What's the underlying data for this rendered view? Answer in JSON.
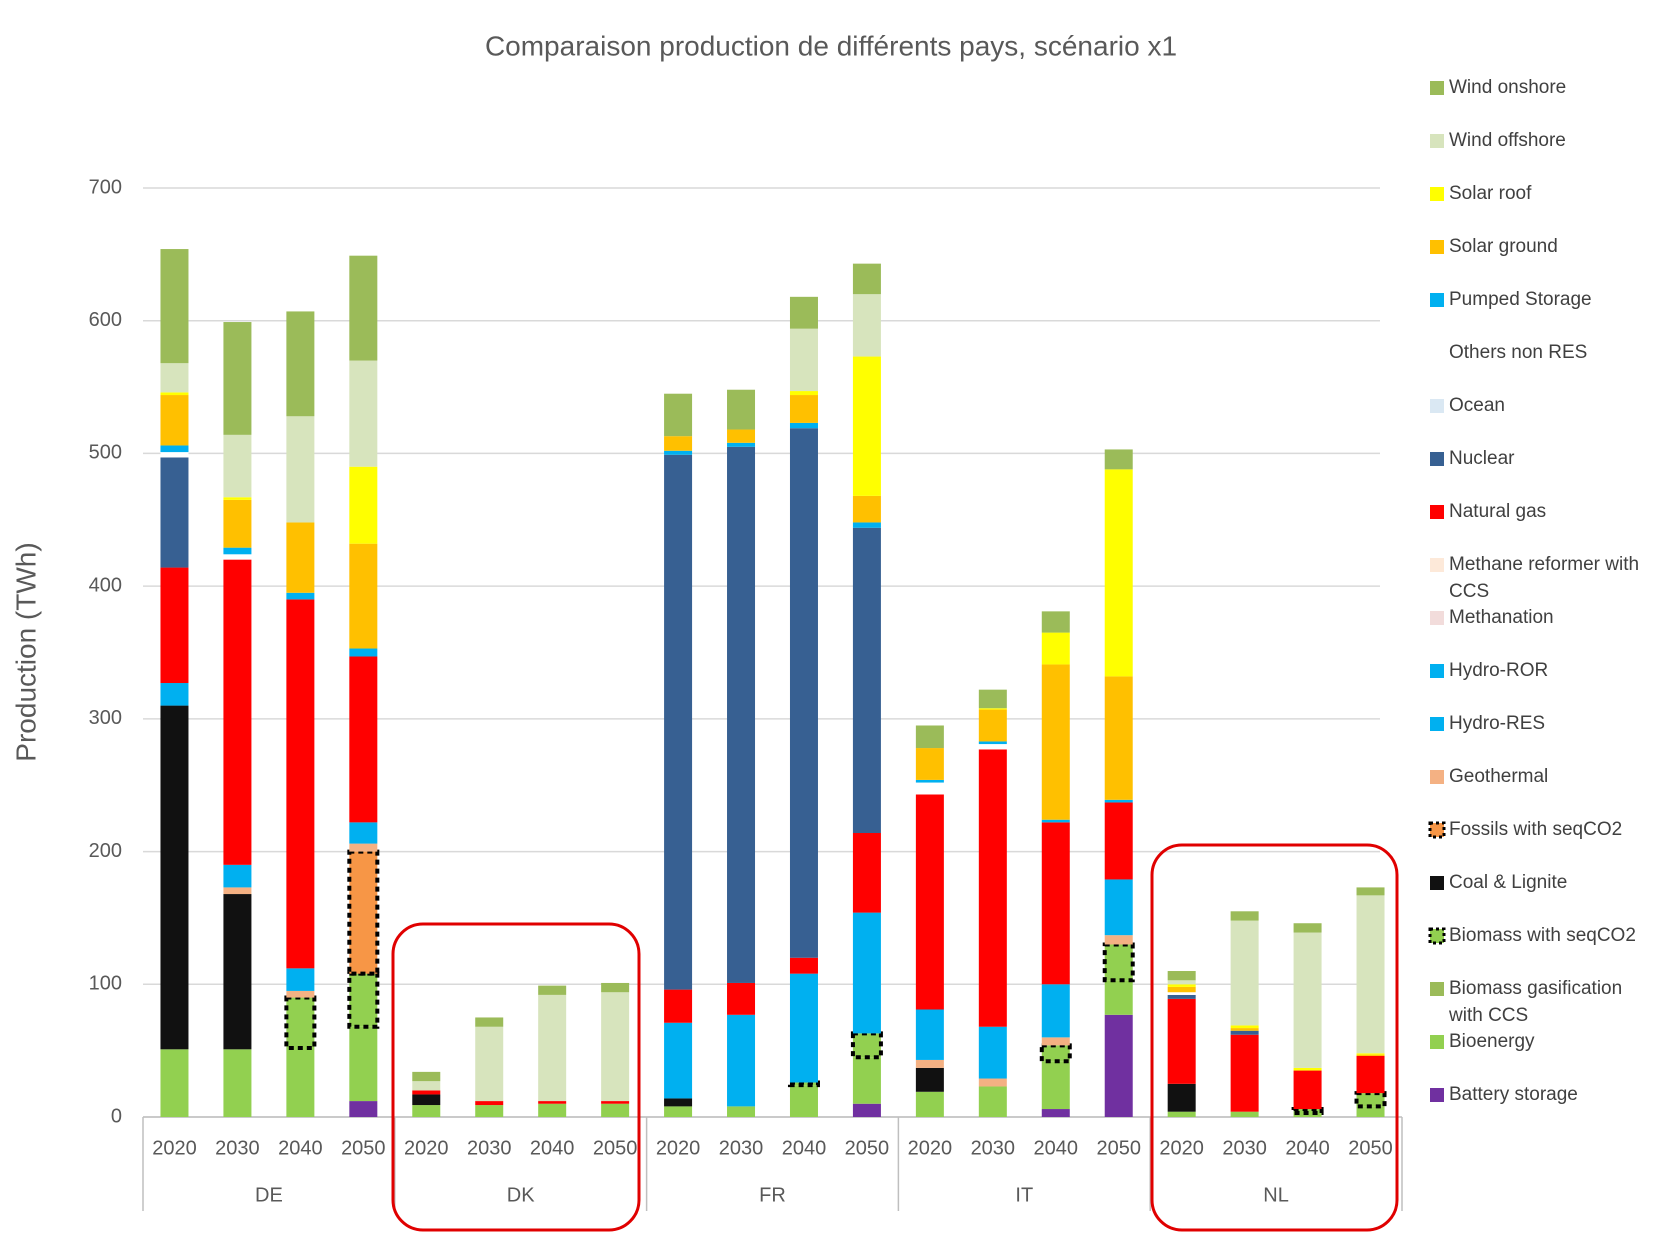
{
  "chart_data": {
    "type": "stacked_bar",
    "title": "Comparaison production de différents pays, scénario x1",
    "y_label": "Production (TWh)",
    "groups": [
      "DE",
      "DK",
      "FR",
      "IT",
      "NL"
    ],
    "categories": [
      "2020",
      "2030",
      "2040",
      "2050",
      "2020",
      "2030",
      "2040",
      "2050",
      "2020",
      "2030",
      "2040",
      "2050",
      "2020",
      "2030",
      "2040",
      "2050",
      "2020",
      "2030",
      "2040",
      "2050"
    ],
    "ylim": [
      0,
      700
    ],
    "yticks": [
      0,
      100,
      200,
      300,
      400,
      500,
      600,
      700
    ],
    "grid": true,
    "legend": "right",
    "series": [
      {
        "name": "Battery storage",
        "color": "#7030a0",
        "values": [
          0,
          0,
          0,
          12,
          0,
          0,
          0,
          0,
          0,
          0,
          0,
          10,
          0,
          0,
          6,
          77,
          0,
          0,
          0,
          0
        ]
      },
      {
        "name": "Bioenergy",
        "color": "#92d050",
        "values": [
          51,
          51,
          52,
          56,
          9,
          9,
          10,
          10,
          8,
          8,
          24,
          35,
          19,
          23,
          36,
          26,
          4,
          4,
          3,
          8
        ]
      },
      {
        "name": "Biomass gasification with CCS",
        "color": "#9bbb59",
        "values": [
          0,
          0,
          0,
          0,
          0,
          0,
          0,
          0,
          0,
          0,
          0,
          0,
          0,
          0,
          0,
          0,
          0,
          0,
          0,
          0
        ]
      },
      {
        "name": "Biomass with seqCO2",
        "color": "#92d050",
        "border": "dotted",
        "values": [
          0,
          0,
          38,
          40,
          0,
          0,
          0,
          0,
          0,
          0,
          2,
          18,
          0,
          0,
          12,
          27,
          0,
          0,
          3,
          10
        ]
      },
      {
        "name": "Coal & Lignite",
        "color": "#111111",
        "values": [
          259,
          117,
          0,
          0,
          8,
          0,
          0,
          0,
          6,
          0,
          0,
          0,
          18,
          0,
          0,
          0,
          21,
          0,
          0,
          0
        ]
      },
      {
        "name": "Fossils with seqCO2",
        "color": "#f79646",
        "border": "dotted",
        "values": [
          0,
          0,
          0,
          92,
          0,
          0,
          0,
          0,
          0,
          0,
          0,
          0,
          0,
          0,
          0,
          0,
          0,
          0,
          0,
          0
        ]
      },
      {
        "name": "Geothermal",
        "color": "#f4b183",
        "values": [
          0,
          5,
          5,
          6,
          0,
          0,
          0,
          0,
          0,
          0,
          0,
          0,
          6,
          6,
          6,
          7,
          0,
          0,
          0,
          0
        ]
      },
      {
        "name": "Hydro-RES",
        "color": "#00b0f0",
        "values": [
          0,
          0,
          0,
          0,
          0,
          0,
          0,
          0,
          57,
          69,
          82,
          91,
          38,
          39,
          40,
          42,
          0,
          0,
          0,
          0
        ]
      },
      {
        "name": "Hydro-ROR",
        "color": "#00b0f0",
        "values": [
          17,
          17,
          17,
          16,
          0,
          0,
          0,
          0,
          0,
          0,
          0,
          0,
          0,
          0,
          0,
          0,
          0,
          0,
          0,
          0
        ]
      },
      {
        "name": "Methanation",
        "color": "#f2dcdb",
        "values": [
          0,
          0,
          0,
          0,
          0,
          0,
          0,
          0,
          0,
          0,
          0,
          0,
          0,
          0,
          0,
          0,
          0,
          0,
          0,
          0
        ]
      },
      {
        "name": "Methane reformer with CCS",
        "color": "#fde9d9",
        "values": [
          0,
          0,
          0,
          0,
          0,
          0,
          0,
          0,
          0,
          0,
          0,
          0,
          0,
          0,
          0,
          0,
          0,
          0,
          0,
          0
        ]
      },
      {
        "name": "Natural gas",
        "color": "#ff0000",
        "values": [
          87,
          230,
          278,
          125,
          3,
          3,
          2,
          2,
          25,
          24,
          12,
          60,
          162,
          209,
          122,
          58,
          64,
          58,
          29,
          28
        ]
      },
      {
        "name": "Nuclear",
        "color": "#376092",
        "values": [
          83,
          0,
          0,
          0,
          0,
          0,
          0,
          0,
          403,
          404,
          399,
          230,
          0,
          0,
          0,
          0,
          3,
          3,
          0,
          0
        ]
      },
      {
        "name": "Ocean",
        "color": "#dae8f3",
        "values": [
          0,
          0,
          0,
          0,
          0,
          0,
          0,
          0,
          0,
          0,
          0,
          0,
          0,
          0,
          0,
          0,
          0,
          0,
          0,
          0
        ]
      },
      {
        "name": "Others non RES",
        "color": "#ffffff",
        "values": [
          4,
          4,
          0,
          0,
          0,
          0,
          0,
          0,
          0,
          0,
          0,
          0,
          9,
          4,
          0,
          0,
          2,
          0,
          0,
          0
        ]
      },
      {
        "name": "Pumped Storage",
        "color": "#00b0f0",
        "values": [
          5,
          5,
          5,
          6,
          0,
          0,
          0,
          0,
          3,
          3,
          4,
          4,
          2,
          2,
          2,
          2,
          0,
          0,
          0,
          0
        ]
      },
      {
        "name": "Solar ground",
        "color": "#ffc000",
        "values": [
          38,
          36,
          53,
          79,
          0,
          0,
          0,
          0,
          11,
          10,
          21,
          20,
          24,
          24,
          117,
          93,
          4,
          2,
          0,
          1
        ]
      },
      {
        "name": "Solar roof",
        "color": "#ffff00",
        "values": [
          2,
          2,
          0,
          58,
          0,
          0,
          0,
          0,
          0,
          0,
          3,
          105,
          0,
          1,
          24,
          156,
          2,
          2,
          2,
          1
        ]
      },
      {
        "name": "Wind offshore",
        "color": "#d7e4bd",
        "values": [
          22,
          47,
          80,
          80,
          7,
          56,
          80,
          82,
          0,
          0,
          47,
          47,
          0,
          0,
          0,
          0,
          3,
          79,
          102,
          119
        ]
      },
      {
        "name": "Wind onshore",
        "color": "#9bbb59",
        "values": [
          86,
          85,
          79,
          79,
          7,
          7,
          7,
          7,
          32,
          30,
          24,
          23,
          17,
          14,
          16,
          15,
          7,
          7,
          7,
          6
        ]
      }
    ]
  }
}
